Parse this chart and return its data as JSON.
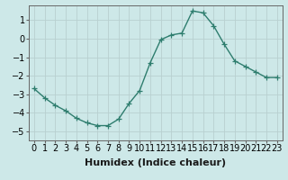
{
  "x": [
    0,
    1,
    2,
    3,
    4,
    5,
    6,
    7,
    8,
    9,
    10,
    11,
    12,
    13,
    14,
    15,
    16,
    17,
    18,
    19,
    20,
    21,
    22,
    23
  ],
  "y": [
    -2.7,
    -3.2,
    -3.6,
    -3.9,
    -4.3,
    -4.55,
    -4.7,
    -4.7,
    -4.35,
    -3.5,
    -2.8,
    -1.3,
    -0.05,
    0.2,
    0.3,
    1.5,
    1.4,
    0.7,
    -0.3,
    -1.2,
    -1.5,
    -1.8,
    -2.1,
    -2.1
  ],
  "line_color": "#2e7d6e",
  "marker": "+",
  "marker_size": 4,
  "xlabel": "Humidex (Indice chaleur)",
  "xlabel_fontsize": 8,
  "xlim": [
    -0.5,
    23.5
  ],
  "ylim": [
    -5.5,
    1.8
  ],
  "yticks": [
    -5,
    -4,
    -3,
    -2,
    -1,
    0,
    1
  ],
  "xtick_labels": [
    "0",
    "1",
    "2",
    "3",
    "4",
    "5",
    "6",
    "7",
    "8",
    "9",
    "10",
    "11",
    "12",
    "13",
    "14",
    "15",
    "16",
    "17",
    "18",
    "19",
    "20",
    "21",
    "22",
    "23"
  ],
  "bg_color": "#cde8e8",
  "grid_color": "#b8d0d0",
  "tick_fontsize": 7,
  "line_width": 1.0,
  "fig_bg": "#cde8e8"
}
